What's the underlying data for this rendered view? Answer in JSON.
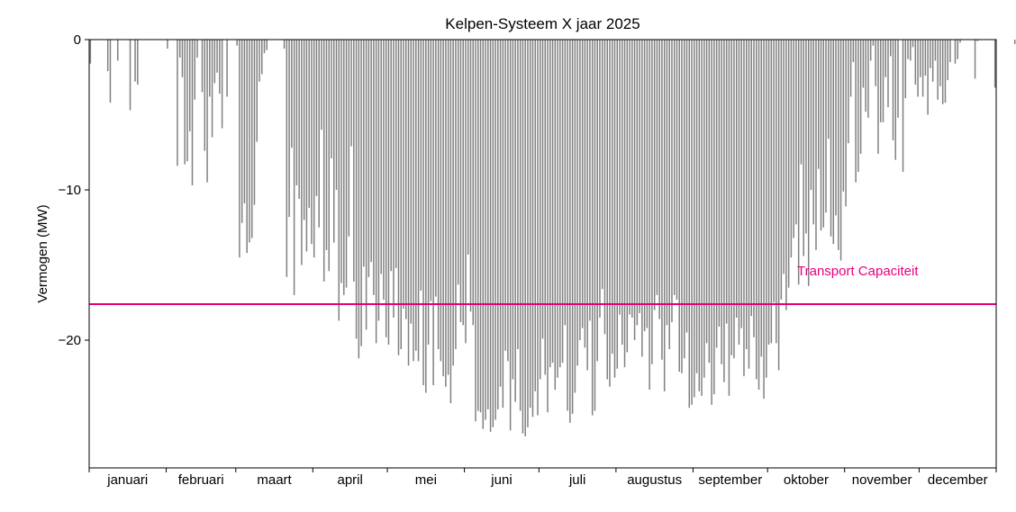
{
  "chart_data": {
    "type": "bar",
    "title": "Kelpen-Systeem X jaar 2025",
    "xlabel": "",
    "ylabel": "Vermogen (MW)",
    "ylim": [
      -28.5,
      0
    ],
    "xlim": [
      0,
      365
    ],
    "yticks": [
      0,
      -10,
      -20
    ],
    "ytick_labels": [
      "0",
      "−10",
      "−20"
    ],
    "months": [
      "januari",
      "februari",
      "maart",
      "april",
      "mei",
      "juni",
      "juli",
      "augustus",
      "september",
      "oktober",
      "november",
      "december"
    ],
    "grid": false,
    "bar_color": "#808080",
    "series": [
      {
        "name": "",
        "values": [
          -1.6,
          0,
          0,
          0,
          0,
          0,
          0,
          -2.1,
          -4.2,
          0,
          0,
          -1.4,
          0,
          0,
          0,
          0,
          -4.7,
          0,
          -2.8,
          -3.0,
          0,
          0,
          0,
          0,
          0,
          0,
          0,
          0,
          0,
          0,
          0,
          -0.6,
          0,
          0,
          0,
          -8.4,
          -1.2,
          -2.5,
          -8.3,
          -8.1,
          -6.1,
          -9.7,
          -4.0,
          -1.2,
          0,
          -3.5,
          -7.4,
          -9.5,
          -3.8,
          -6.5,
          -2.9,
          -2.2,
          -3.6,
          -5.9,
          0,
          -3.8,
          0,
          0,
          0,
          -0.4,
          -14.5,
          -12.2,
          -10.9,
          -14.2,
          -13.5,
          -13.2,
          -11.0,
          -6.8,
          -2.8,
          -2.3,
          -0.9,
          -0.7,
          0,
          0,
          0,
          0,
          0,
          0,
          -0.6,
          -15.8,
          -11.8,
          -7.2,
          -17.0,
          -9.7,
          -10.6,
          -15.0,
          -12.0,
          -14.1,
          -11.2,
          -13.6,
          -14.5,
          -10.4,
          -12.5,
          -6.0,
          -16.1,
          -14.0,
          -15.4,
          -7.9,
          -13.5,
          -10.0,
          -18.7,
          -16.2,
          -17.0,
          -16.5,
          -13.1,
          -7.1,
          -16.1,
          -19.9,
          -21.2,
          -20.4,
          -15.1,
          -19.3,
          -15.8,
          -14.8,
          -17.0,
          -20.2,
          -18.7,
          -15.6,
          -17.3,
          -19.8,
          -20.3,
          -15.4,
          -18.5,
          -15.2,
          -21.0,
          -20.6,
          -17.9,
          -18.6,
          -21.7,
          -18.9,
          -21.4,
          -20.7,
          -21.4,
          -16.7,
          -23.0,
          -23.5,
          -20.3,
          -17.4,
          -23.0,
          -17.1,
          -20.6,
          -21.4,
          -22.4,
          -23.1,
          -22.3,
          -24.2,
          -21.7,
          -20.6,
          -16.3,
          -18.8,
          -19.0,
          -20.2,
          -14.3,
          -18.1,
          -19.0,
          -25.4,
          -24.7,
          -24.8,
          -25.9,
          -25.3,
          -24.6,
          -26.1,
          -25.8,
          -25.3,
          -24.6,
          -23.1,
          -24.5,
          -20.7,
          -21.4,
          -26.0,
          -22.6,
          -24.1,
          -20.6,
          -24.7,
          -26.2,
          -26.4,
          -25.8,
          -24.5,
          -25.1,
          -23.4,
          -25.0,
          -22.6,
          -19.9,
          -22.3,
          -24.8,
          -21.8,
          -21.5,
          -23.3,
          -22.5,
          -21.8,
          -21.5,
          -19.0,
          -24.7,
          -25.5,
          -24.9,
          -23.5,
          -21.7,
          -20.0,
          -19.2,
          -20.5,
          -22.0,
          -18.7,
          -25.0,
          -24.7,
          -21.4,
          -18.5,
          -16.6,
          -19.6,
          -22.6,
          -23.1,
          -20.9,
          -22.5,
          -21.9,
          -18.3,
          -20.3,
          -21.8,
          -20.8,
          -18.3,
          -18.5,
          -20.0,
          -19.0,
          -18.2,
          -21.1,
          -19.4,
          -19.2,
          -23.3,
          -21.6,
          -18.0,
          -17.0,
          -18.6,
          -21.3,
          -23.4,
          -19.0,
          -20.6,
          -18.8,
          -17.0,
          -17.3,
          -22.1,
          -22.2,
          -21.2,
          -19.5,
          -24.5,
          -24.3,
          -23.8,
          -22.2,
          -23.4,
          -23.7,
          -22.5,
          -20.2,
          -21.5,
          -24.3,
          -23.6,
          -20.5,
          -19.1,
          -21.6,
          -22.8,
          -18.9,
          -23.7,
          -21.0,
          -21.2,
          -18.5,
          -20.3,
          -19.2,
          -22.4,
          -20.6,
          -21.9,
          -18.4,
          -19.8,
          -22.6,
          -23.3,
          -21.1,
          -23.9,
          -22.5,
          -20.3,
          -20.2,
          -17.5,
          -20.2,
          -22.0,
          -17.3,
          -15.6,
          -18.0,
          -16.5,
          -14.5,
          -13.2,
          -12.3,
          -16.3,
          -8.3,
          -14.4,
          -12.9,
          -16.4,
          -10.0,
          -12.3,
          -14.0,
          -8.6,
          -12.7,
          -12.5,
          -11.5,
          -6.6,
          -13.1,
          -13.6,
          -11.7,
          -14.0,
          -14.7,
          -10.1,
          -11.1,
          -6.9,
          -3.8,
          -1.5,
          -9.5,
          -8.8,
          -7.6,
          -3.2,
          -4.8,
          -5.2,
          -1.4,
          -0.4,
          -3.1,
          -7.6,
          -5.5,
          -5.5,
          -2.5,
          -4.5,
          -1.1,
          -6.7,
          -8.0,
          -5.2,
          0,
          -8.8,
          -3.9,
          -1.3,
          -1.4,
          -0.5,
          -3.0,
          -3.8,
          -2.5,
          -3.8,
          -2.4,
          -5.0,
          -1.9,
          -2.8,
          -1.4,
          -4.0,
          -3.1,
          -4.3,
          -4.2,
          -2.7,
          -1.5,
          0,
          -1.6,
          -1.3,
          -0.2,
          0,
          0,
          0,
          0,
          0,
          -2.6,
          -0.1,
          0,
          0,
          0,
          0,
          0,
          0,
          -3.2,
          0,
          0,
          0,
          0,
          0,
          0,
          0,
          -0.3
        ]
      }
    ],
    "reference_line": {
      "value": -17.6,
      "label": "Transport Capaciteit",
      "color": "#e6007e"
    }
  }
}
